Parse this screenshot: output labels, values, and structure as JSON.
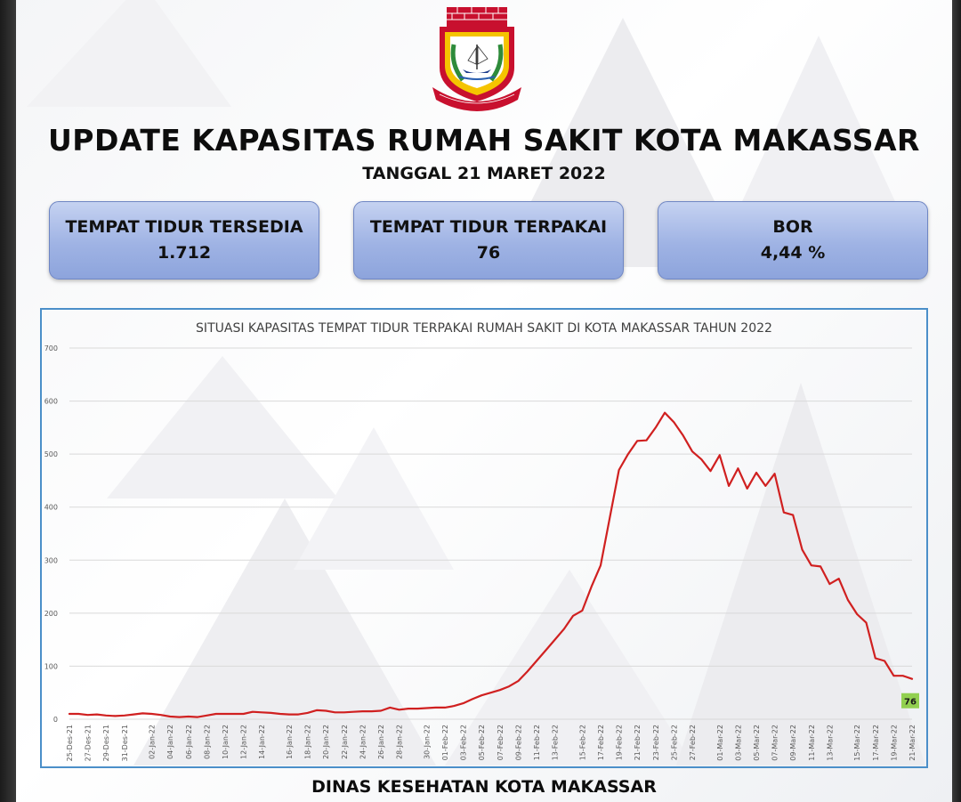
{
  "header": {
    "title": "UPDATE KAPASITAS RUMAH SAKIT KOTA MAKASSAR",
    "subtitle": "TANGGAL 21 MARET 2022"
  },
  "logo": {
    "icon": "makassar-city-emblem",
    "text": "SEKALI LAYAR TERKEMBANG PANTANG BIDUK SURUT KE PANTAI",
    "ship_text": "KOTA MAKASSAR"
  },
  "cards": [
    {
      "label": "TEMPAT TIDUR TERSEDIA",
      "value": "1.712"
    },
    {
      "label": "TEMPAT TIDUR TERPAKAI",
      "value": "76"
    },
    {
      "label": "BOR",
      "value": "4,44 %"
    }
  ],
  "footer": "DINAS KESEHATAN KOTA MAKASSAR",
  "colors": {
    "line": "#d02020",
    "card_fill": "#9fb3e4",
    "card_border": "#6f86c3",
    "chart_border": "#4b8fc9",
    "last_label_bg": "#92d050",
    "logo_red": "#c8102e",
    "logo_gold": "#d4a017"
  },
  "chart_data": {
    "type": "line",
    "title": "SITUASI KAPASITAS TEMPAT TIDUR TERPAKAI RUMAH SAKIT DI KOTA MAKASSAR TAHUN 2022",
    "xlabel": "",
    "ylabel": "",
    "ylim": [
      0,
      700
    ],
    "yticks": [
      0,
      100,
      200,
      300,
      400,
      500,
      600,
      700
    ],
    "grid": true,
    "legend": "none",
    "x_tick_labels": [
      "25-Des-21",
      "27-Des-21",
      "29-Des-21",
      "31-Des-21",
      "02-Jan-22",
      "04-Jan-22",
      "06-Jan-22",
      "08-Jan-22",
      "10-Jan-22",
      "12-Jan-22",
      "14-Jan-22",
      "16-Jan-22",
      "18-Jan-22",
      "20-Jan-22",
      "22-Jan-22",
      "24-Jan-22",
      "26-Jan-22",
      "28-Jan-22",
      "30-Jan-22",
      "01-Feb-22",
      "03-Feb-22",
      "05-Feb-22",
      "07-Feb-22",
      "09-Feb-22",
      "11-Feb-22",
      "13-Feb-22",
      "15-Feb-22",
      "17-Feb-22",
      "19-Feb-22",
      "21-Feb-22",
      "23-Feb-22",
      "25-Feb-22",
      "27-Feb-22",
      "01-Mar-22",
      "03-Mar-22",
      "05-Mar-22",
      "07-Mar-22",
      "09-Mar-22",
      "11-Mar-22",
      "13-Mar-22",
      "15-Mar-22",
      "17-Mar-22",
      "19-Mar-22",
      "21-Mar-22"
    ],
    "series": [
      {
        "values": [
          10,
          10,
          8,
          9,
          7,
          6,
          7,
          9,
          11,
          10,
          8,
          5,
          4,
          5,
          4,
          7,
          10,
          10,
          10,
          10,
          14,
          13,
          12,
          10,
          9,
          9,
          12,
          17,
          16,
          13,
          13,
          14,
          15,
          15,
          16,
          22,
          18,
          20,
          20,
          21,
          22,
          22,
          25,
          30,
          38,
          45,
          50,
          55,
          62,
          72,
          90,
          110,
          130,
          150,
          170,
          195,
          205,
          250,
          290,
          380,
          470,
          500,
          525,
          526,
          550,
          578,
          560,
          535,
          505,
          490,
          468,
          498,
          440,
          473,
          435,
          465,
          440,
          463,
          390,
          385,
          320,
          290,
          288,
          255,
          265,
          225,
          198,
          182,
          115,
          110,
          82,
          82,
          76
        ]
      }
    ],
    "last_value_label": "76"
  }
}
